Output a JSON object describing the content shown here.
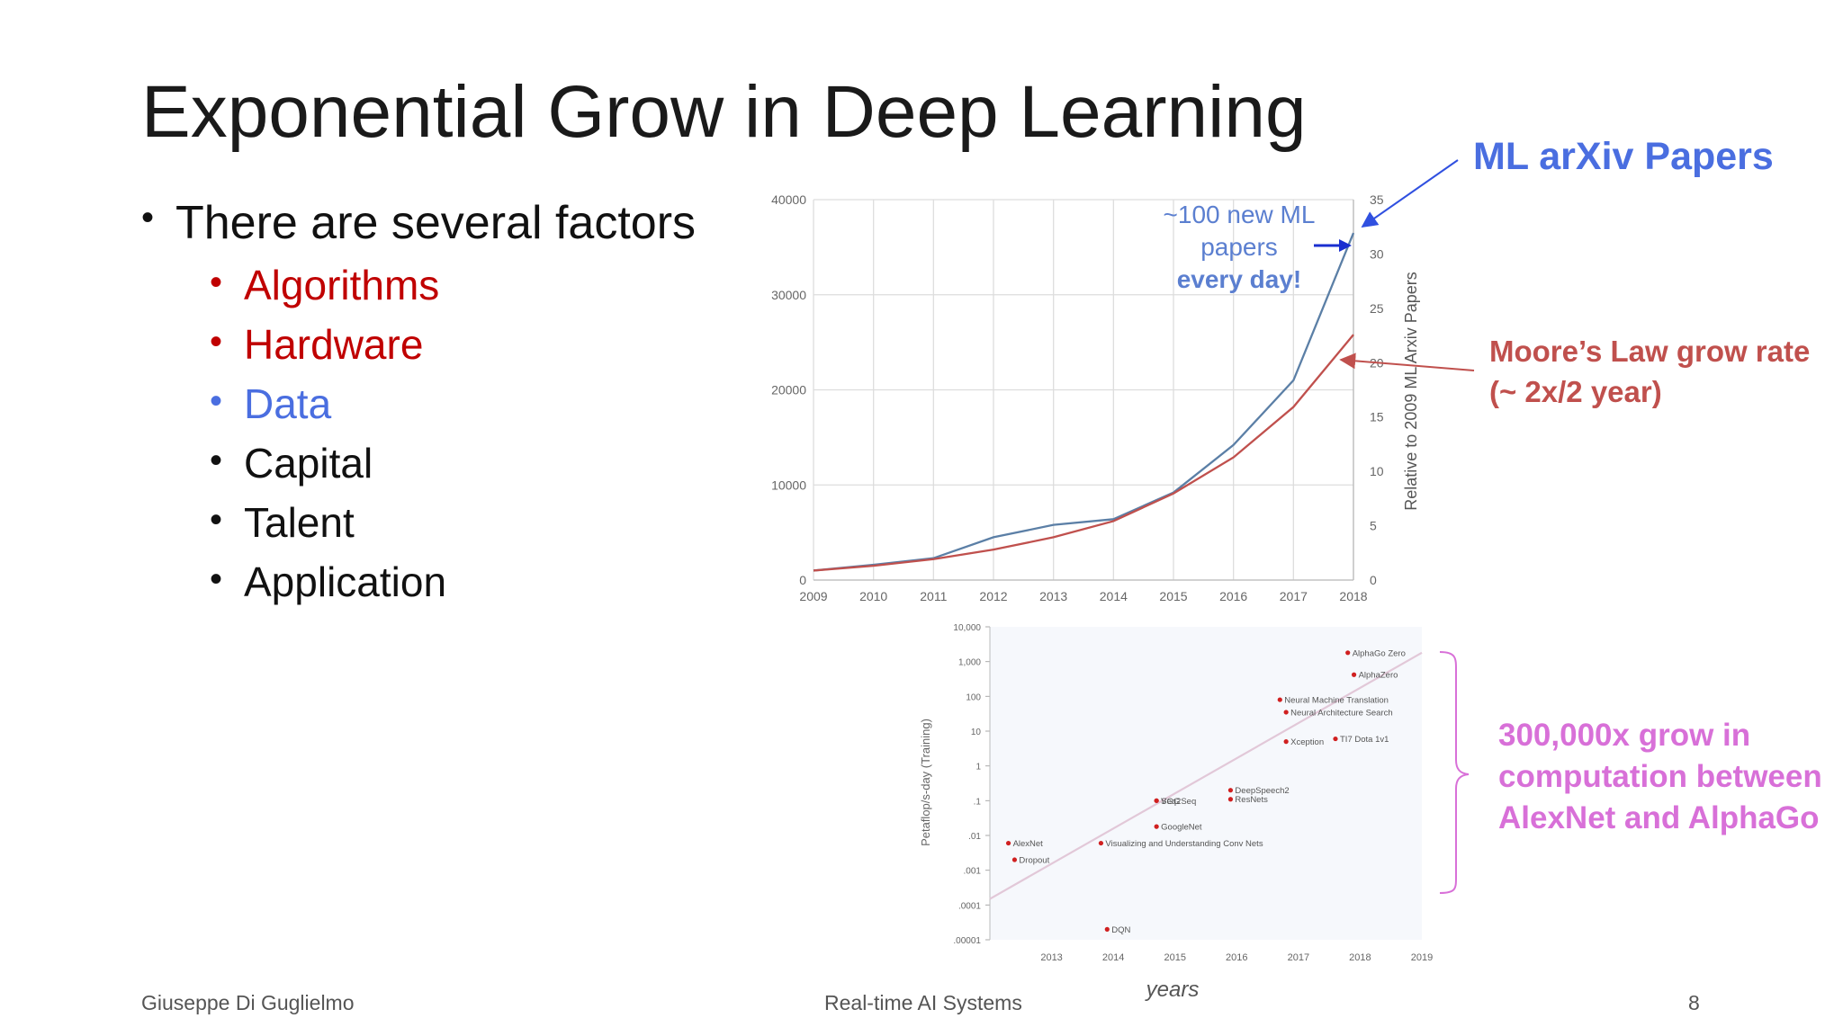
{
  "slide": {
    "title": "Exponential Grow in Deep Learning",
    "bullet_main": "There are several factors",
    "bullets": [
      {
        "text": "Algorithms",
        "color": "#c00000"
      },
      {
        "text": "Hardware",
        "color": "#c00000"
      },
      {
        "text": "Data",
        "color": "#4a6ee0"
      },
      {
        "text": "Capital",
        "color": "#111111"
      },
      {
        "text": "Talent",
        "color": "#111111"
      },
      {
        "text": "Application",
        "color": "#111111"
      }
    ],
    "annotations": {
      "ml_arxiv": "ML arXiv Papers",
      "moore_line1": "Moore’s Law grow rate",
      "moore_line2": "(~ 2x/2 year)",
      "compute_line1": "300,000x grow in",
      "compute_line2": "computation between",
      "compute_line3": "AlexNet and AlphaGo"
    },
    "footer": {
      "author": "Giuseppe Di Guglielmo",
      "course": "Real-time AI Systems",
      "page": "8"
    }
  },
  "chart_data": [
    {
      "type": "line",
      "x": [
        2009,
        2010,
        2011,
        2012,
        2013,
        2014,
        2015,
        2016,
        2017,
        2018
      ],
      "series": [
        {
          "color": "#5b7fa6",
          "axis": "left",
          "values": [
            1000,
            1600,
            2300,
            4500,
            5800,
            6400,
            9200,
            14200,
            21000,
            36500
          ]
        },
        {
          "color": "#c0504d",
          "axis": "left",
          "values": [
            1000,
            1500,
            2200,
            3200,
            4500,
            6200,
            9100,
            12900,
            18200,
            25800
          ]
        }
      ],
      "ylim_left": [
        0,
        40000
      ],
      "yticks_left": [
        "0",
        "10000",
        "20000",
        "30000",
        "40000"
      ],
      "ylim_right": [
        0,
        35
      ],
      "yticks_right": [
        "0",
        "5",
        "10",
        "15",
        "20",
        "25",
        "30",
        "35"
      ],
      "ylabel_right": "Relative to 2009 ML Arxiv Papers",
      "annotation_lines": [
        "~100 new ML",
        "papers",
        "every day!"
      ],
      "grid": true
    },
    {
      "type": "scatter",
      "xlim": [
        2012,
        2019
      ],
      "xticks": [
        "2013",
        "2014",
        "2015",
        "2016",
        "2017",
        "2018",
        "2019"
      ],
      "ylog": true,
      "ylim": [
        1e-05,
        10000
      ],
      "yticks": [
        "10,000",
        "1,000",
        "100",
        "10",
        "1",
        ".1",
        ".01",
        ".001",
        ".0001",
        ".00001"
      ],
      "ylabel": "Petaflop/s-day (Training)",
      "xlabel": "years",
      "trend": {
        "x": [
          2012,
          2019
        ],
        "y": [
          0.00015,
          1800
        ]
      },
      "points": [
        {
          "name": "AlexNet",
          "x": 2012.3,
          "y": 0.006
        },
        {
          "name": "Dropout",
          "x": 2012.4,
          "y": 0.002
        },
        {
          "name": "Visualizing and Understanding Conv Nets",
          "x": 2013.8,
          "y": 0.006
        },
        {
          "name": "DQN",
          "x": 2013.9,
          "y": 2e-05
        },
        {
          "name": "VGG",
          "x": 2014.7,
          "y": 0.1
        },
        {
          "name": "Seq2Seq",
          "x": 2014.7,
          "y": 0.1
        },
        {
          "name": "GoogleNet",
          "x": 2014.7,
          "y": 0.018
        },
        {
          "name": "DeepSpeech2",
          "x": 2015.9,
          "y": 0.2
        },
        {
          "name": "ResNets",
          "x": 2015.9,
          "y": 0.11
        },
        {
          "name": "Neural Machine Translation",
          "x": 2016.7,
          "y": 80
        },
        {
          "name": "Neural Architecture Search",
          "x": 2016.8,
          "y": 35
        },
        {
          "name": "Xception",
          "x": 2016.8,
          "y": 5
        },
        {
          "name": "TI7 Dota 1v1",
          "x": 2017.6,
          "y": 6
        },
        {
          "name": "AlphaGo Zero",
          "x": 2017.8,
          "y": 1800
        },
        {
          "name": "AlphaZero",
          "x": 2017.9,
          "y": 420
        }
      ]
    }
  ]
}
